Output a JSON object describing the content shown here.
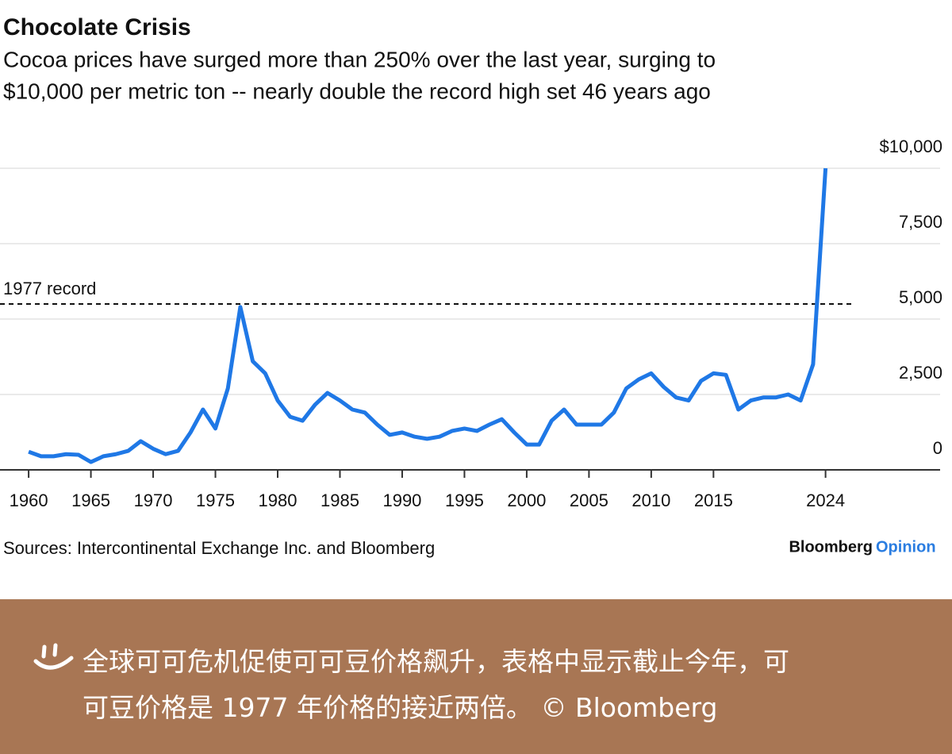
{
  "chart_data": {
    "type": "line",
    "title": "Chocolate Crisis",
    "subtitle": [
      "Cocoa prices have surged more than 250% over the last year, surging to",
      "$10,000 per metric ton -- nearly double the record high set 46 years ago"
    ],
    "x": [
      1960,
      1961,
      1962,
      1963,
      1964,
      1965,
      1966,
      1967,
      1968,
      1969,
      1970,
      1971,
      1972,
      1973,
      1974,
      1975,
      1976,
      1977,
      1978,
      1979,
      1980,
      1981,
      1982,
      1983,
      1984,
      1985,
      1986,
      1987,
      1988,
      1989,
      1990,
      1991,
      1992,
      1993,
      1994,
      1995,
      1996,
      1997,
      1998,
      1999,
      2000,
      2001,
      2002,
      2003,
      2004,
      2005,
      2006,
      2007,
      2008,
      2009,
      2010,
      2011,
      2012,
      2013,
      2014,
      2015,
      2016,
      2017,
      2018,
      2019,
      2020,
      2021,
      2022,
      2023,
      2024
    ],
    "series": [
      {
        "name": "Cocoa price",
        "color": "#1f78e6",
        "values": [
          600,
          450,
          450,
          520,
          500,
          260,
          450,
          520,
          630,
          950,
          700,
          520,
          630,
          1240,
          2000,
          1370,
          2700,
          5400,
          3600,
          3200,
          2300,
          1760,
          1630,
          2160,
          2550,
          2300,
          2000,
          1900,
          1500,
          1160,
          1240,
          1100,
          1030,
          1100,
          1290,
          1370,
          1290,
          1500,
          1680,
          1240,
          840,
          840,
          1630,
          2000,
          1500,
          1500,
          1500,
          1900,
          2700,
          3000,
          3200,
          2750,
          2400,
          2300,
          2950,
          3200,
          3150,
          2000,
          2300,
          2400,
          2400,
          2500,
          2300,
          3500,
          10000
        ]
      }
    ],
    "xlim": [
      1957.7,
      2033.2
    ],
    "xticks": [
      1960,
      1965,
      1970,
      1975,
      1980,
      1985,
      1990,
      1995,
      2000,
      2005,
      2010,
      2015,
      2024
    ],
    "ylim": [
      0,
      10000
    ],
    "yticks": [
      0,
      {
        "value": 2500,
        "label": "2,500"
      },
      {
        "value": 5000,
        "label": "5,000"
      },
      {
        "value": 7500,
        "label": "7,500"
      },
      {
        "value": 10000,
        "label": "$10,000"
      }
    ],
    "grid": true,
    "record_line": {
      "value": 5500,
      "label": "1977 record"
    },
    "source": "Sources: Intercontinental Exchange Inc. and Bloomberg",
    "brand": [
      "Bloomberg",
      "Opinion"
    ]
  },
  "caption": [
    "全球可可危机促使可可豆价格飙升，表格中显示截止今年，可",
    "可豆价格是 1977 年价格的接近两倍。 © Bloomberg"
  ]
}
